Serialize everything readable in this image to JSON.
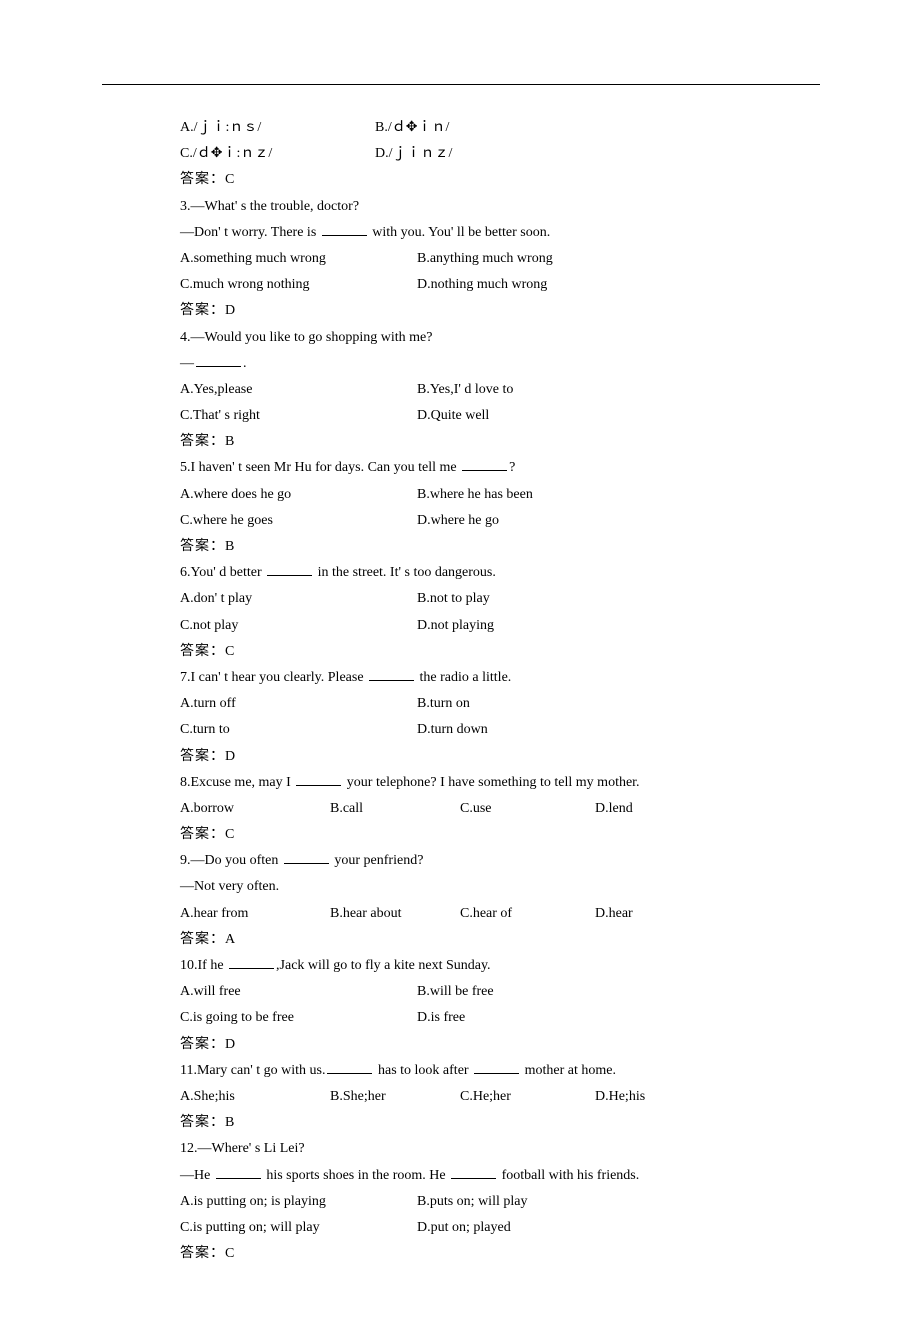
{
  "q2": {
    "optA": "A./ｊｉ:ｎｓ/",
    "optB": "B./ｄ✥ｉｎ/",
    "optC": "C./ｄ✥ｉ:ｎｚ/",
    "optD": "D./ｊｉｎｚ/",
    "answerLabel": "答案：C"
  },
  "q3": {
    "line1": "3.—What' s the trouble, doctor?",
    "line2a": "—Don' t worry. There is ",
    "line2b": " with you. You' ll be better soon.",
    "optA": "A.something much wrong",
    "optB": "B.anything much wrong",
    "optC": "C.much wrong nothing",
    "optD": "D.nothing much wrong",
    "answerLabel": "答案：D"
  },
  "q4": {
    "line1": "4.—Would you like to go shopping with me?",
    "line2a": "—",
    "line2b": ".",
    "optA": "A.Yes,please",
    "optB": "B.Yes,I' d love to",
    "optC": "C.That' s right",
    "optD": "D.Quite well",
    "answerLabel": "答案：B"
  },
  "q5": {
    "line1a": "5.I haven' t seen Mr Hu for days. Can you tell me ",
    "line1b": "?",
    "optA": "A.where does he go",
    "optB": "B.where he has been",
    "optC": "C.where he goes",
    "optD": "D.where he go",
    "answerLabel": "答案：B"
  },
  "q6": {
    "line1a": "6.You' d better ",
    "line1b": " in the street. It' s too dangerous.",
    "optA": "A.don' t play",
    "optB": "B.not to play",
    "optC": "C.not play",
    "optD": "D.not playing",
    "answerLabel": "答案：C"
  },
  "q7": {
    "line1a": "7.I can' t hear you clearly. Please ",
    "line1b": " the radio a little.",
    "optA": "A.turn off",
    "optB": "B.turn on",
    "optC": "C.turn to",
    "optD": " D.turn down",
    "answerLabel": "答案：D"
  },
  "q8": {
    "line1a": "8.Excuse me, may I ",
    "line1b": " your telephone? I have something to tell my mother.",
    "optA": "A.borrow",
    "optB": "B.call",
    "optC": "C.use",
    "optD": "D.lend",
    "answerLabel": "答案：C"
  },
  "q9": {
    "line1a": "9.—Do you often ",
    "line1b": " your penfriend?",
    "line2": "—Not very often.",
    "optA": "A.hear from",
    "optB": "B.hear about",
    "optC": "C.hear of",
    "optD": "D.hear",
    "answerLabel": "答案：A"
  },
  "q10": {
    "line1a": "10.If he ",
    "line1b": ",Jack will go to fly a kite next Sunday.",
    "optA": "A.will free",
    "optB": "B.will be free",
    "optC": "C.is going to be free",
    "optD": "D.is free",
    "answerLabel": "答案：D"
  },
  "q11": {
    "line1a": "11.Mary can' t go with us.",
    "line1b": " has to look after ",
    "line1c": " mother at home.",
    "optA": "A.She;his",
    "optB": "B.She;her",
    "optC": "C.He;her",
    "optD": "D.He;his",
    "answerLabel": "答案：B"
  },
  "q12": {
    "line1": "12.—Where' s Li Lei?",
    "line2a": "—He ",
    "line2b": " his sports shoes in the room. He ",
    "line2c": " football with his friends.",
    "optA": "A.is putting on; is playing",
    "optB": "B.puts on; will play",
    "optC": "C.is putting on; will play",
    "optD": "D.put on;   played",
    "answerLabel": "答案：C"
  }
}
